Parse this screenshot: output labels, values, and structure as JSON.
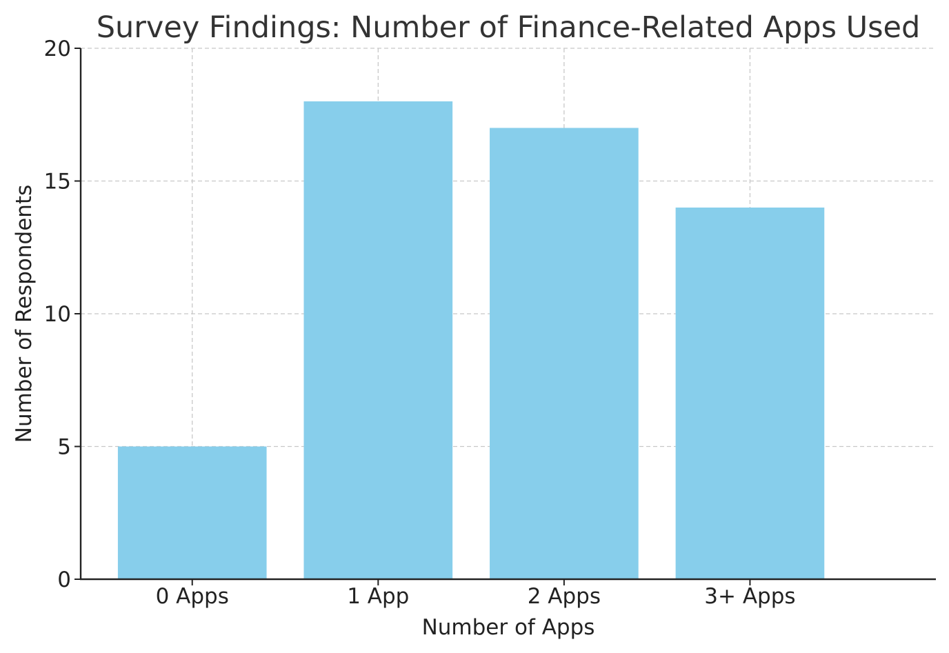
{
  "chart_data": {
    "type": "bar",
    "title": "Survey Findings: Number of Finance-Related Apps Used",
    "xlabel": "Number of Apps",
    "ylabel": "Number of Respondents",
    "categories": [
      "0 Apps",
      "1 App",
      "2 Apps",
      "3+ Apps"
    ],
    "values": [
      5,
      18,
      17,
      14
    ],
    "ylim": [
      0,
      20
    ],
    "yticks": [
      0,
      5,
      10,
      15,
      20
    ],
    "grid": true,
    "bar_color": "#87CEEB"
  }
}
